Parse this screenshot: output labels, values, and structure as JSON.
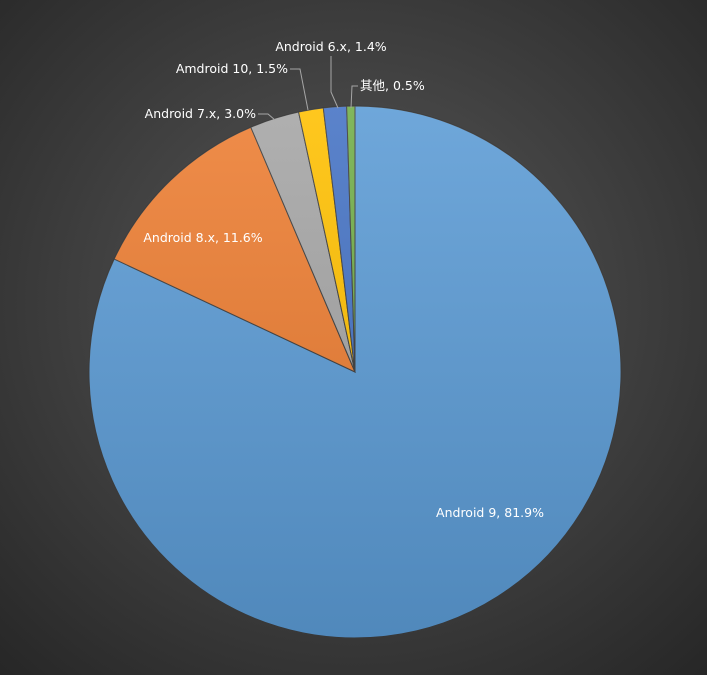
{
  "chart_data": {
    "type": "pie",
    "categories": [
      "Android 9",
      "Android 8.x",
      "Android 7.x",
      "Amdroid 10",
      "Android 6.x",
      "其他"
    ],
    "values": [
      81.9,
      11.6,
      3.0,
      1.5,
      1.4,
      0.5
    ],
    "value_labels": [
      "81.9%",
      "11.6%",
      "3.0%",
      "1.5%",
      "1.4%",
      "0.5%"
    ],
    "label_separator": ", ",
    "colors": [
      "#5b9bd5",
      "#ed7d31",
      "#a5a5a5",
      "#ffc000",
      "#4472c4",
      "#70ad47"
    ]
  }
}
